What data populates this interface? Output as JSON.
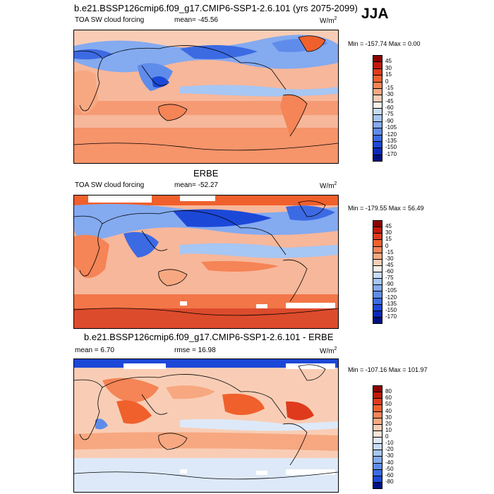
{
  "page": {
    "main_title": "b.e21.BSSP126cmip6.f09_g17.CMIP6-SSP1-2.6.101 (yrs 2075-2099)",
    "season": "JJA"
  },
  "panels": [
    {
      "id": "model",
      "header": "",
      "left_label": "TOA SW cloud forcing",
      "stat_label": "mean= -45.56",
      "units": "W/m",
      "units_sup": "2",
      "minmax": "Min = -157.74 Max =   0.00",
      "levels": [
        "45",
        "30",
        "15",
        "0",
        "-15",
        "-30",
        "-45",
        "-60",
        "-75",
        "-90",
        "-105",
        "-120",
        "-135",
        "-150",
        "-170"
      ],
      "colors": [
        "#8b0000",
        "#c0180c",
        "#e03a1c",
        "#f0602c",
        "#f58456",
        "#f7a880",
        "#f9cdb5",
        "#f7f0ea",
        "#c8dcf8",
        "#a6c6f4",
        "#84aaf0",
        "#5f8ceb",
        "#3c6ae3",
        "#1c48d8",
        "#0a28b8",
        "#000f80"
      ]
    },
    {
      "id": "obs",
      "header": "ERBE",
      "left_label": "TOA SW cloud forcing",
      "stat_label": "mean= -52.27",
      "units": "W/m",
      "units_sup": "2",
      "minmax": "Min = -179.55 Max =  56.49",
      "levels": [
        "45",
        "30",
        "15",
        "0",
        "-15",
        "-30",
        "-45",
        "-60",
        "-75",
        "-90",
        "-105",
        "-120",
        "-135",
        "-150",
        "-170"
      ],
      "colors": [
        "#8b0000",
        "#c0180c",
        "#e03a1c",
        "#f0602c",
        "#f58456",
        "#f7a880",
        "#f9cdb5",
        "#f7f0ea",
        "#c8dcf8",
        "#a6c6f4",
        "#84aaf0",
        "#5f8ceb",
        "#3c6ae3",
        "#1c48d8",
        "#0a28b8",
        "#000f80"
      ]
    },
    {
      "id": "diff",
      "header": "b.e21.BSSP126cmip6.f09_g17.CMIP6-SSP1-2.6.101 - ERBE",
      "left_label": "mean =   6.70",
      "stat_label": "rmse =  16.98",
      "units": "W/m",
      "units_sup": "2",
      "minmax": "Min = -107.16 Max = 101.97",
      "levels": [
        "80",
        "60",
        "50",
        "40",
        "30",
        "20",
        "10",
        "0",
        "-10",
        "-20",
        "-30",
        "-40",
        "-50",
        "-60",
        "-80"
      ],
      "colors": [
        "#8b0000",
        "#c0180c",
        "#e03a1c",
        "#f0602c",
        "#f58456",
        "#f7a880",
        "#f9cdb5",
        "#fbe4d6",
        "#dde9f8",
        "#c8dcf8",
        "#a6c6f4",
        "#84aaf0",
        "#5f8ceb",
        "#3c6ae3",
        "#1c48d8",
        "#000f80"
      ]
    }
  ]
}
